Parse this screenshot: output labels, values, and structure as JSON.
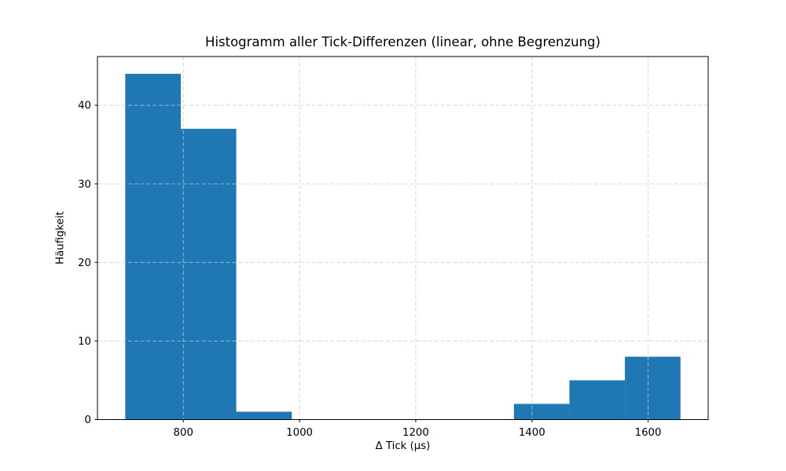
{
  "figure": {
    "background": "#ffffff"
  },
  "chart_data": {
    "type": "bar",
    "variant": "histogram",
    "title": "Histogramm aller Tick-Differenzen (linear, ohne Begrenzung)",
    "xlabel": "Δ Tick (µs)",
    "ylabel": "Häufigkeit",
    "bin_edges": [
      700,
      795.6,
      891.1,
      986.7,
      1082.3,
      1177.8,
      1273.4,
      1369.0,
      1464.5,
      1560.1,
      1655.7
    ],
    "counts": [
      44,
      37,
      1,
      0,
      0,
      0,
      0,
      2,
      5,
      8
    ],
    "x_ticks": [
      800,
      1000,
      1200,
      1400,
      1600
    ],
    "y_ticks": [
      0,
      10,
      20,
      30,
      40
    ],
    "xlim": [
      652.2,
      1703.4
    ],
    "ylim": [
      0,
      46.2
    ],
    "grid": true,
    "grid_linestyle": "dashed",
    "grid_over_bars": true,
    "legend": false,
    "colors": {
      "bar": "#1f77b4",
      "grid": "#c9c9c9",
      "axis": "#000000",
      "text": "#000000"
    }
  }
}
